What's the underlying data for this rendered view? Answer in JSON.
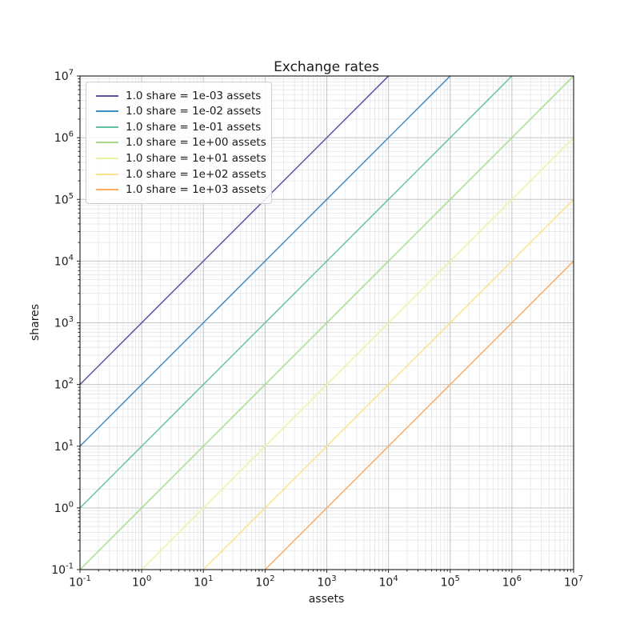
{
  "chart_data": {
    "type": "line",
    "title": "Exchange rates",
    "xlabel": "assets",
    "ylabel": "shares",
    "x_scale": "log",
    "y_scale": "log",
    "xlim": [
      0.1,
      10000000
    ],
    "ylim": [
      0.1,
      10000000
    ],
    "x_tick_labels": [
      "10^-1",
      "10^0",
      "10^1",
      "10^2",
      "10^3",
      "10^4",
      "10^5",
      "10^6",
      "10^7"
    ],
    "y_tick_labels": [
      "10^-1",
      "10^0",
      "10^1",
      "10^2",
      "10^3",
      "10^4",
      "10^5",
      "10^6",
      "10^7"
    ],
    "grid": {
      "major": true,
      "minor": true,
      "major_color": "#c4c4c4",
      "minor_color": "#e6e6e6"
    },
    "legend": {
      "position": "upper left"
    },
    "series": [
      {
        "label": "1.0 share = 1e-03 assets",
        "rate_assets_per_share": 0.001,
        "color": "#5e4fa2",
        "points": [
          [
            0.1,
            100
          ],
          [
            10000,
            10000000
          ]
        ]
      },
      {
        "label": "1.0 share = 1e-02 assets",
        "rate_assets_per_share": 0.01,
        "color": "#3a8bc2",
        "points": [
          [
            0.1,
            10
          ],
          [
            100000,
            10000000
          ]
        ]
      },
      {
        "label": "1.0 share = 1e-01 assets",
        "rate_assets_per_share": 0.1,
        "color": "#62c2a4",
        "points": [
          [
            0.1,
            1
          ],
          [
            1000000,
            10000000
          ]
        ]
      },
      {
        "label": "1.0 share = 1e+00 assets",
        "rate_assets_per_share": 1,
        "color": "#a8db8b",
        "points": [
          [
            0.1,
            0.1
          ],
          [
            10000000,
            10000000
          ]
        ]
      },
      {
        "label": "1.0 share = 1e+01 assets",
        "rate_assets_per_share": 10,
        "color": "#e9f6a1",
        "points": [
          [
            1,
            0.1
          ],
          [
            10000000,
            1000000
          ]
        ]
      },
      {
        "label": "1.0 share = 1e+02 assets",
        "rate_assets_per_share": 100,
        "color": "#fee18c",
        "points": [
          [
            10,
            0.1
          ],
          [
            10000000,
            100000
          ]
        ]
      },
      {
        "label": "1.0 share = 1e+03 assets",
        "rate_assets_per_share": 1000,
        "color": "#fcab5f",
        "points": [
          [
            100,
            0.1
          ],
          [
            10000000,
            10000
          ]
        ]
      }
    ]
  }
}
